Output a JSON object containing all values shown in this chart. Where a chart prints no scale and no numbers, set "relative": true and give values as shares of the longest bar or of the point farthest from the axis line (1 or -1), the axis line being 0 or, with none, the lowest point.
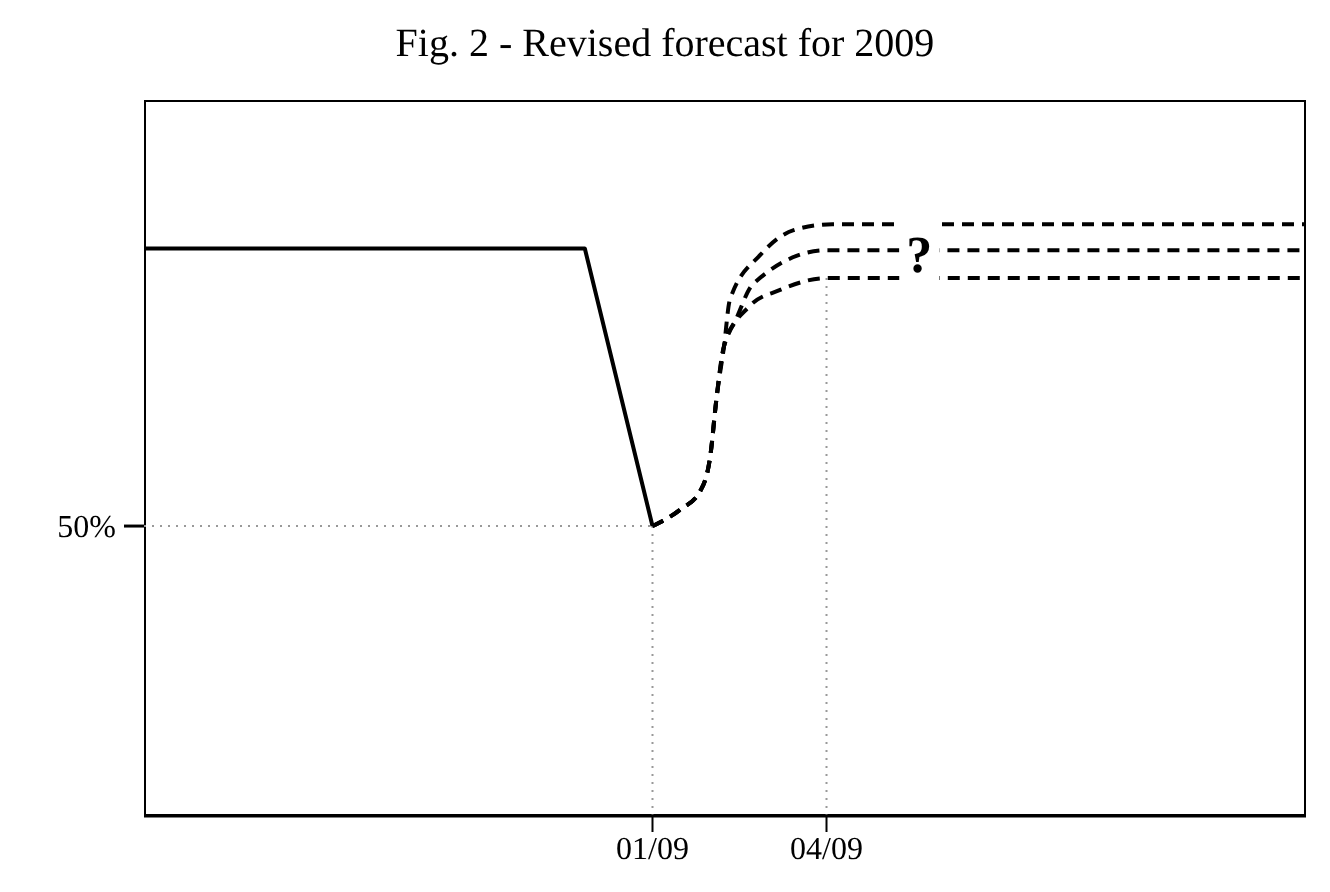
{
  "chart_data": {
    "type": "line",
    "title": "Fig. 2 - Revised forecast for 2009",
    "relative": true,
    "xlim": [
      "2008-04-13",
      "2009-12-05"
    ],
    "xticks": [
      {
        "value": "2009-01-01",
        "label": "01/09"
      },
      {
        "value": "2009-04-01",
        "label": "04/09"
      }
    ],
    "series": [
      {
        "color": "#000000",
        "line_style": "solid",
        "x": [
          "2008-04-13",
          "2008-11-27",
          "2009-01-01"
        ],
        "values": [
          0.959,
          0.959,
          0.49
        ]
      },
      {
        "color": "#000000",
        "line_style": "dashed",
        "x": [
          "2009-01-01",
          "2009-01-15",
          "2009-01-26",
          "2009-01-31",
          "2009-02-03",
          "2009-02-07",
          "2009-02-10",
          "2009-02-26",
          "2009-03-15",
          "2009-04-04",
          "2009-12-05"
        ],
        "values": [
          0.49,
          0.517,
          0.551,
          0.611,
          0.703,
          0.794,
          0.872,
          0.949,
          0.99,
          1,
          1
        ]
      },
      {
        "color": "#000000",
        "line_style": "dashed",
        "x": [
          "2009-01-01",
          "2009-01-15",
          "2009-01-26",
          "2009-01-31",
          "2009-02-03",
          "2009-02-07",
          "2009-02-13",
          "2009-02-22",
          "2009-04-01",
          "2009-12-05"
        ],
        "values": [
          0.49,
          0.517,
          0.551,
          0.611,
          0.703,
          0.794,
          0.838,
          0.899,
          0.956,
          0.956
        ]
      },
      {
        "color": "#000000",
        "line_style": "dashed",
        "x": [
          "2009-01-01",
          "2009-01-15",
          "2009-01-26",
          "2009-01-31",
          "2009-02-03",
          "2009-02-07",
          "2009-02-20",
          "2009-03-08",
          "2009-04-01",
          "2009-12-05"
        ],
        "values": [
          0.49,
          0.517,
          0.551,
          0.611,
          0.703,
          0.794,
          0.861,
          0.889,
          0.909,
          0.909
        ]
      }
    ],
    "ref_lines": [
      {
        "axis": "y",
        "value": 0.49,
        "color": "#999999",
        "line_style": "dotted"
      },
      {
        "axis": "x",
        "value": "2009-01-01",
        "color": "#999999",
        "line_style": "dotted"
      },
      {
        "axis": "x",
        "value": "2009-04-01",
        "color": "#999999",
        "line_style": "dotted"
      }
    ],
    "annotations": [
      "50%",
      {
        "text": "?",
        "x": "2009-05-19",
        "y": 0.95
      }
    ],
    "grid": false,
    "marker": "none"
  }
}
